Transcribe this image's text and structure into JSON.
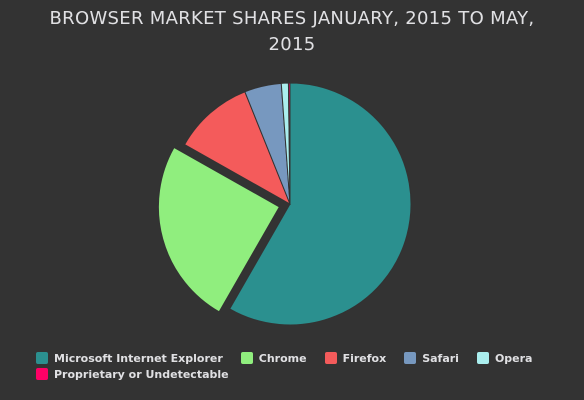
{
  "chart_data": {
    "type": "pie",
    "title": "BROWSER MARKET SHARES JANUARY, 2015 TO MAY, 2015",
    "slices": [
      {
        "name": "Microsoft Internet Explorer",
        "value": 56.33,
        "color": "#2b908f"
      },
      {
        "name": "Chrome",
        "value": 24.03,
        "color": "#90ee7e",
        "sliced": true
      },
      {
        "name": "Firefox",
        "value": 10.38,
        "color": "#f45b5b"
      },
      {
        "name": "Safari",
        "value": 4.77,
        "color": "#7798bf"
      },
      {
        "name": "Opera",
        "value": 0.91,
        "color": "#aaeeee"
      },
      {
        "name": "Proprietary or Undetectable",
        "value": 0.2,
        "color": "#ff0066"
      }
    ],
    "legend_position": "bottom"
  }
}
